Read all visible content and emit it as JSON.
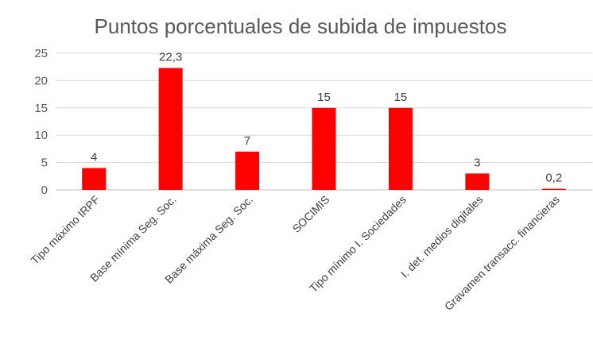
{
  "chart_data": {
    "type": "bar",
    "title": "Puntos porcentuales de subida de impuestos",
    "categories": [
      "Tipo máximo IRPF",
      "Base mínima Seg. Soc.",
      "Base máxima Seg. Soc.",
      "SOCIMIS",
      "Tipo mínimo I. Sociedades",
      "I. det. medios digitales",
      "Gravamen transacc. financieras"
    ],
    "values": [
      4,
      22.3,
      7,
      15,
      15,
      3,
      0.2
    ],
    "data_labels": [
      "4",
      "22,3",
      "7",
      "15",
      "15",
      "3",
      "0,2"
    ],
    "ylim": [
      0,
      25
    ],
    "yticks": [
      0,
      5,
      10,
      15,
      20,
      25
    ],
    "grid": true,
    "legend": "none",
    "bar_color": "#ff0000"
  }
}
